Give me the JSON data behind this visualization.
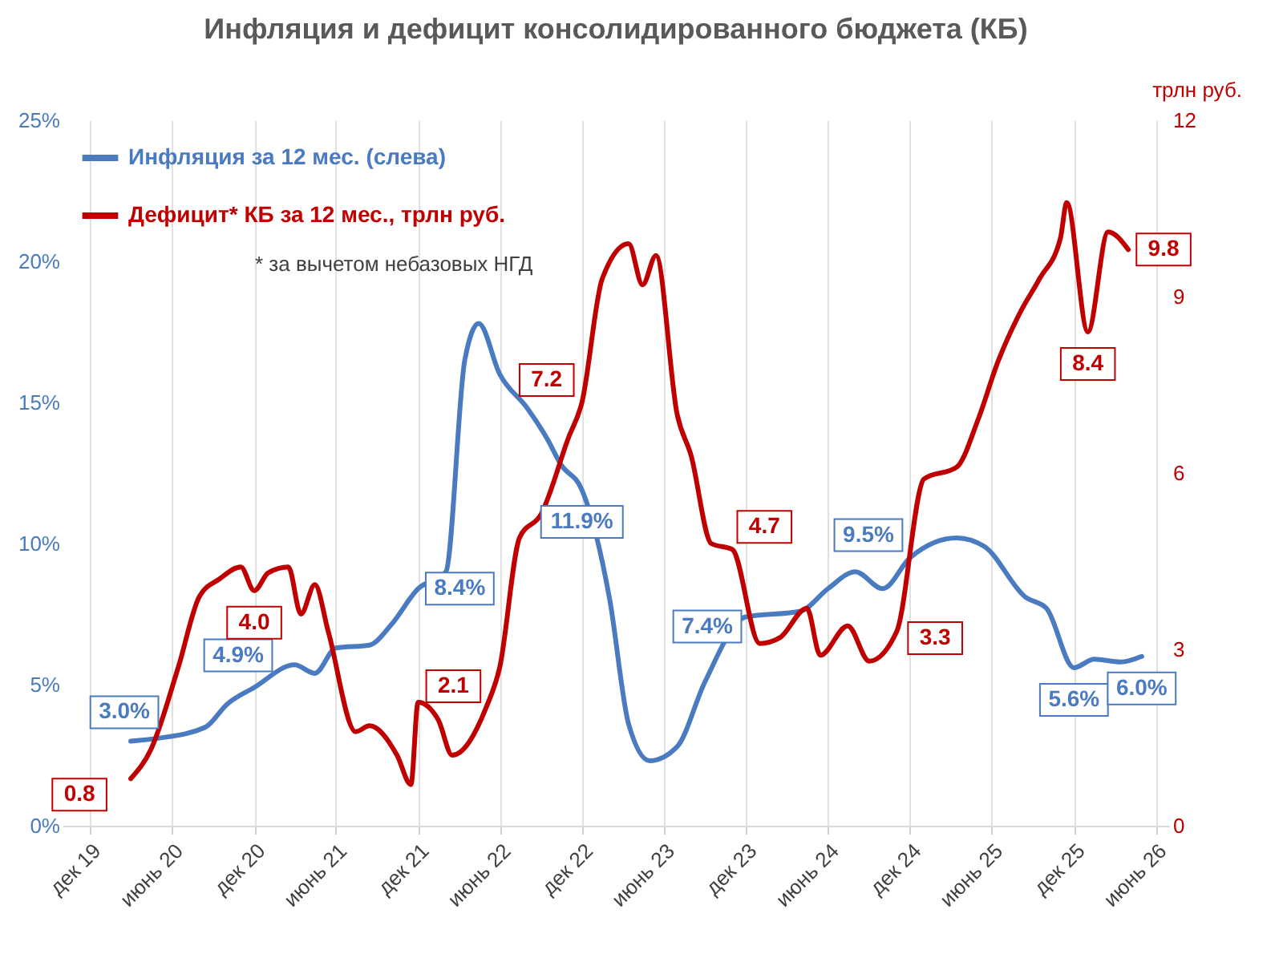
{
  "chart_data": {
    "type": "line",
    "title": "Инфляция и дефицит консолидированного бюджета (КБ)",
    "y2label": "трлн руб.",
    "annotations": [
      "* за вычетом небазовых НГД"
    ],
    "xlim": [
      "2019-10",
      "2026-07"
    ],
    "xticks": [
      {
        "value": "2019-12",
        "label": "дек 19"
      },
      {
        "value": "2020-06",
        "label": "июнь 20"
      },
      {
        "value": "2020-12",
        "label": "дек 20"
      },
      {
        "value": "2021-06",
        "label": "июнь 21"
      },
      {
        "value": "2021-12",
        "label": "дек 21"
      },
      {
        "value": "2022-06",
        "label": "июнь 22"
      },
      {
        "value": "2022-12",
        "label": "дек 22"
      },
      {
        "value": "2023-06",
        "label": "июнь 23"
      },
      {
        "value": "2023-12",
        "label": "дек 23"
      },
      {
        "value": "2024-06",
        "label": "июнь 24"
      },
      {
        "value": "2024-12",
        "label": "дек 24"
      },
      {
        "value": "2025-06",
        "label": "июнь 25"
      },
      {
        "value": "2025-12",
        "label": "дек 25"
      },
      {
        "value": "2026-06",
        "label": "июнь 26"
      }
    ],
    "ylim": [
      0,
      25
    ],
    "yticks": [
      {
        "value": 0,
        "label": "0%"
      },
      {
        "value": 5,
        "label": "5%"
      },
      {
        "value": 10,
        "label": "10%"
      },
      {
        "value": 15,
        "label": "15%"
      },
      {
        "value": 20,
        "label": "20%"
      },
      {
        "value": 25,
        "label": "25%"
      }
    ],
    "y2lim": [
      0,
      12
    ],
    "y2ticks": [
      0,
      3,
      6,
      9,
      12
    ],
    "grid": "x",
    "legend": "top left",
    "series": [
      {
        "name": "Инфляция за 12 мес. (слева)",
        "color": "#4a7bc0",
        "x": [
          "2020-03",
          "2020-05",
          "2020-08-15",
          "2020-10",
          "2020-12",
          "2021-03",
          "2021-04-15",
          "2021-06",
          "2021-08-15",
          "2021-10",
          "2021-12",
          "2022-02",
          "2022-03-15",
          "2022-04-15",
          "2022-06",
          "2022-08",
          "2022-09-15",
          "2022-10-15",
          "2022-12",
          "2023-02",
          "2023-03-15",
          "2023-05",
          "2023-07",
          "2023-09",
          "2023-12",
          "2024-04",
          "2024-06",
          "2024-08",
          "2024-10",
          "2024-12",
          "2025-03-15",
          "2025-05-15",
          "2025-08-15",
          "2025-10",
          "2025-12",
          "2026-01-15",
          "2026-03-15",
          "2026-05"
        ],
        "values": [
          3.0,
          3.1,
          3.5,
          4.3,
          4.9,
          5.7,
          5.4,
          6.3,
          6.4,
          7.1,
          8.4,
          9.0,
          16.5,
          17.8,
          16.0,
          14.8,
          13.7,
          12.8,
          11.9,
          8.0,
          3.6,
          2.3,
          2.8,
          5.1,
          7.4,
          7.6,
          8.4,
          9.0,
          8.4,
          9.5,
          10.2,
          9.9,
          8.1,
          7.7,
          5.6,
          5.9,
          5.8,
          6.0
        ],
        "value_labels": [
          "3.0%",
          null,
          null,
          null,
          "4.9%",
          null,
          null,
          null,
          null,
          null,
          "8.4%",
          null,
          null,
          null,
          null,
          null,
          null,
          null,
          "11.9%",
          null,
          null,
          null,
          null,
          null,
          "7.4%",
          null,
          null,
          null,
          null,
          "9.5%",
          null,
          null,
          null,
          null,
          "5.6%",
          null,
          null,
          "6.0%"
        ]
      },
      {
        "name": "Дефицит* КБ за 12 мес., трлн руб.",
        "color": "#c00000",
        "axis": "y2",
        "x": [
          "2020-03",
          "2020-04-15",
          "2020-06-15",
          "2020-08",
          "2020-09-15",
          "2020-11",
          "2020-12",
          "2021-01",
          "2021-02-15",
          "2021-03-15",
          "2021-04-15",
          "2021-05-15",
          "2021-07-15",
          "2021-08-15",
          "2021-10-15",
          "2021-11-15",
          "2021-12",
          "2022-01-15",
          "2022-02-15",
          "2022-05",
          "2022-06",
          "2022-07-15",
          "2022-09",
          "2022-11",
          "2022-12",
          "2023-01-15",
          "2023-03-15",
          "2023-04-15",
          "2023-05-15",
          "2023-07",
          "2023-08",
          "2023-09-15",
          "2023-11",
          "2024-01",
          "2024-02-15",
          "2024-04-15",
          "2024-05-15",
          "2024-07-15",
          "2024-09",
          "2024-11",
          "2025-01",
          "2025-03-15",
          "2025-05",
          "2025-06-15",
          "2025-08",
          "2025-09-15",
          "2025-11",
          "2025-11-15",
          "2026-01",
          "2026-02-15",
          "2026-04"
        ],
        "values": [
          0.8,
          1.3,
          2.7,
          3.9,
          4.2,
          4.4,
          4.0,
          4.3,
          4.4,
          3.6,
          4.1,
          3.3,
          1.6,
          1.7,
          1.2,
          0.7,
          2.1,
          1.8,
          1.2,
          2.0,
          2.7,
          4.9,
          5.3,
          6.6,
          7.2,
          9.3,
          9.9,
          9.2,
          9.7,
          7.0,
          6.3,
          4.8,
          4.7,
          3.1,
          3.2,
          3.7,
          2.9,
          3.4,
          2.8,
          3.3,
          5.9,
          6.1,
          6.9,
          7.9,
          8.7,
          9.3,
          10.0,
          10.6,
          8.4,
          10.1,
          9.8
        ],
        "value_labels": [
          "0.8",
          null,
          null,
          null,
          null,
          null,
          "4.0",
          null,
          null,
          null,
          null,
          null,
          null,
          null,
          null,
          null,
          "2.1",
          null,
          null,
          null,
          null,
          null,
          null,
          null,
          "7.2",
          null,
          null,
          null,
          null,
          null,
          null,
          null,
          "4.7",
          null,
          null,
          null,
          null,
          null,
          null,
          "3.3",
          null,
          null,
          null,
          null,
          null,
          null,
          null,
          null,
          "8.4",
          null,
          "9.8"
        ]
      }
    ]
  }
}
